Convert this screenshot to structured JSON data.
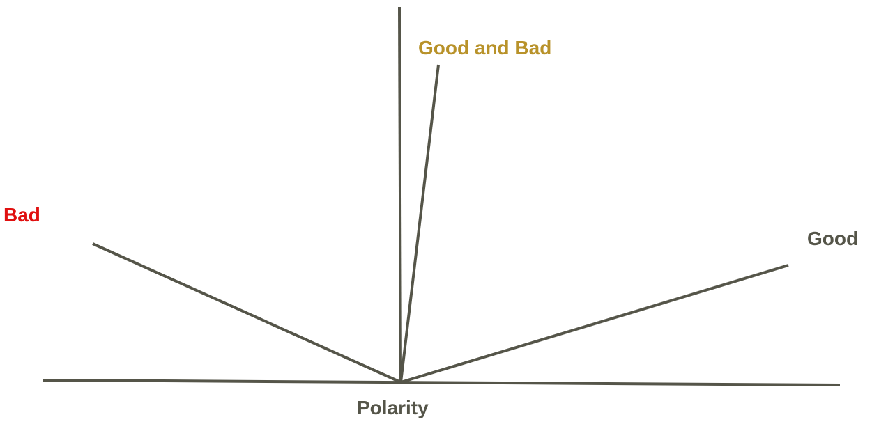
{
  "labels": {
    "good_and_bad": "Good and Bad",
    "bad": "Bad",
    "good": "Good",
    "polarity": "Polarity"
  },
  "colors": {
    "line": "#555549",
    "good_and_bad": "#b8922a",
    "bad": "#e01010",
    "good": "#555549",
    "polarity": "#555549"
  }
}
